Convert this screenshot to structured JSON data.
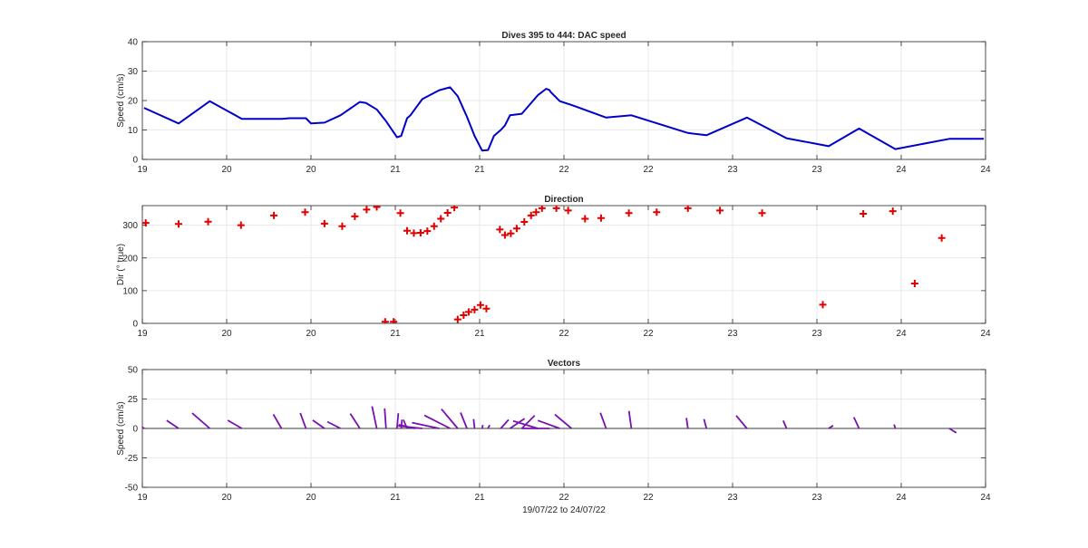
{
  "chart_data": [
    {
      "type": "line",
      "title": "Dives 395 to 444: DAC speed",
      "xlabel": "",
      "ylabel": "Speed (cm/s)",
      "ylim": [
        0,
        40
      ],
      "yticks": [
        0,
        10,
        20,
        30,
        40
      ],
      "xlim": [
        0,
        1000
      ],
      "xticks": [
        0,
        100,
        200,
        300,
        400,
        500,
        600,
        700,
        800,
        900,
        1000
      ],
      "xtick_labels": [
        "19",
        "20",
        "20",
        "21",
        "21",
        "22",
        "22",
        "23",
        "23",
        "24",
        "24"
      ],
      "grid": true,
      "color": "#0000c8",
      "series": [
        {
          "x": [
            2,
            43,
            80,
            118,
            165,
            175,
            194,
            200,
            216,
            235,
            258,
            265,
            278,
            289,
            302,
            307,
            314,
            318,
            323,
            332,
            352,
            365,
            374,
            385,
            394,
            403,
            410,
            417,
            425,
            430,
            436,
            450,
            469,
            479,
            483,
            484,
            495,
            509,
            550,
            580,
            647,
            669,
            717,
            764,
            814,
            850,
            893,
            957,
            998
          ],
          "y": [
            17.5,
            12.2,
            19.8,
            13.8,
            13.8,
            14.0,
            14.0,
            12.2,
            12.5,
            15.0,
            19.5,
            19.2,
            17.0,
            13.0,
            7.5,
            8.0,
            14.0,
            15.0,
            17.0,
            20.5,
            23.5,
            24.5,
            21.5,
            14.5,
            8.0,
            3.0,
            3.2,
            8.0,
            10.0,
            11.5,
            15.0,
            15.5,
            21.8,
            24.0,
            23.5,
            23.0,
            19.8,
            18.5,
            14.2,
            15.0,
            9.0,
            8.2,
            14.2,
            7.2,
            4.5,
            10.5,
            3.5,
            7.0,
            7.0
          ]
        }
      ]
    },
    {
      "type": "scatter",
      "title": "Direction",
      "xlabel": "",
      "ylabel": "Dir (° true)",
      "ylim": [
        0,
        360
      ],
      "yticks": [
        0,
        100,
        200,
        300
      ],
      "xlim": [
        0,
        1000
      ],
      "xticks": [
        0,
        100,
        200,
        300,
        400,
        500,
        600,
        700,
        800,
        900,
        1000
      ],
      "xtick_labels": [
        "19",
        "20",
        "20",
        "21",
        "21",
        "22",
        "22",
        "23",
        "23",
        "24",
        "24"
      ],
      "grid": true,
      "color": "#e00000",
      "marker": "+",
      "series": [
        {
          "x": [
            4,
            43,
            78,
            117,
            156,
            193,
            216,
            237,
            252,
            266,
            278,
            288,
            298,
            306,
            314,
            322,
            330,
            338,
            346,
            354,
            362,
            370,
            374,
            381,
            387,
            394,
            401,
            408,
            424,
            430,
            437,
            444,
            453,
            461,
            467,
            474,
            491,
            505,
            525,
            544,
            577,
            610,
            647,
            685,
            735,
            807,
            855,
            890,
            916
          ],
          "y": [
            307,
            304,
            311,
            300,
            330,
            340,
            305,
            297,
            327,
            348,
            356,
            5,
            5,
            337,
            283,
            276,
            277,
            282,
            297,
            320,
            338,
            354,
            12,
            25,
            35,
            42,
            56,
            45,
            287,
            270,
            275,
            290,
            310,
            330,
            340,
            352,
            352,
            345,
            320,
            322,
            337,
            340,
            352,
            345,
            337,
            57,
            335,
            343,
            122
          ]
        },
        {
          "x": [
            948
          ],
          "y": [
            261
          ]
        }
      ]
    },
    {
      "type": "line",
      "title": "Vectors",
      "xlabel": "19/07/22 to 24/07/22",
      "ylabel": "Speed (cm/s)",
      "ylim": [
        -50,
        50
      ],
      "yticks": [
        -50,
        -25,
        0,
        25,
        50
      ],
      "xlim": [
        0,
        1000
      ],
      "xticks": [
        0,
        100,
        200,
        300,
        400,
        500,
        600,
        700,
        800,
        900,
        1000
      ],
      "xtick_labels": [
        "19",
        "20",
        "20",
        "21",
        "21",
        "22",
        "22",
        "23",
        "23",
        "24",
        "24"
      ],
      "grid": true,
      "color": "#7a10b0",
      "vectors": {
        "x": [
          2,
          43,
          80,
          118,
          165,
          194,
          216,
          235,
          258,
          278,
          289,
          302,
          307,
          314,
          323,
          332,
          352,
          365,
          374,
          385,
          394,
          403,
          410,
          425,
          436,
          450,
          469,
          483,
          495,
          509,
          550,
          580,
          647,
          669,
          717,
          764,
          814,
          850,
          893,
          957
        ],
        "speed": [
          17.5,
          12.2,
          19.8,
          13.8,
          13.8,
          14.0,
          12.2,
          12.5,
          15.0,
          19.2,
          17.0,
          13.0,
          7.5,
          8.0,
          14.0,
          20.5,
          23.5,
          24.5,
          21.5,
          14.5,
          8.0,
          3.0,
          3.2,
          10.0,
          15.0,
          15.5,
          21.8,
          23.5,
          19.8,
          18.5,
          14.2,
          15.0,
          9.0,
          8.2,
          14.2,
          7.2,
          4.5,
          10.5,
          3.5,
          7.0
        ],
        "dir_deg": [
          307,
          304,
          311,
          300,
          330,
          340,
          305,
          297,
          327,
          348,
          356,
          5,
          5,
          337,
          283,
          276,
          282,
          297,
          320,
          338,
          354,
          12,
          25,
          42,
          56,
          45,
          287,
          270,
          290,
          310,
          340,
          352,
          352,
          345,
          320,
          337,
          57,
          335,
          343,
          122
        ]
      }
    }
  ]
}
